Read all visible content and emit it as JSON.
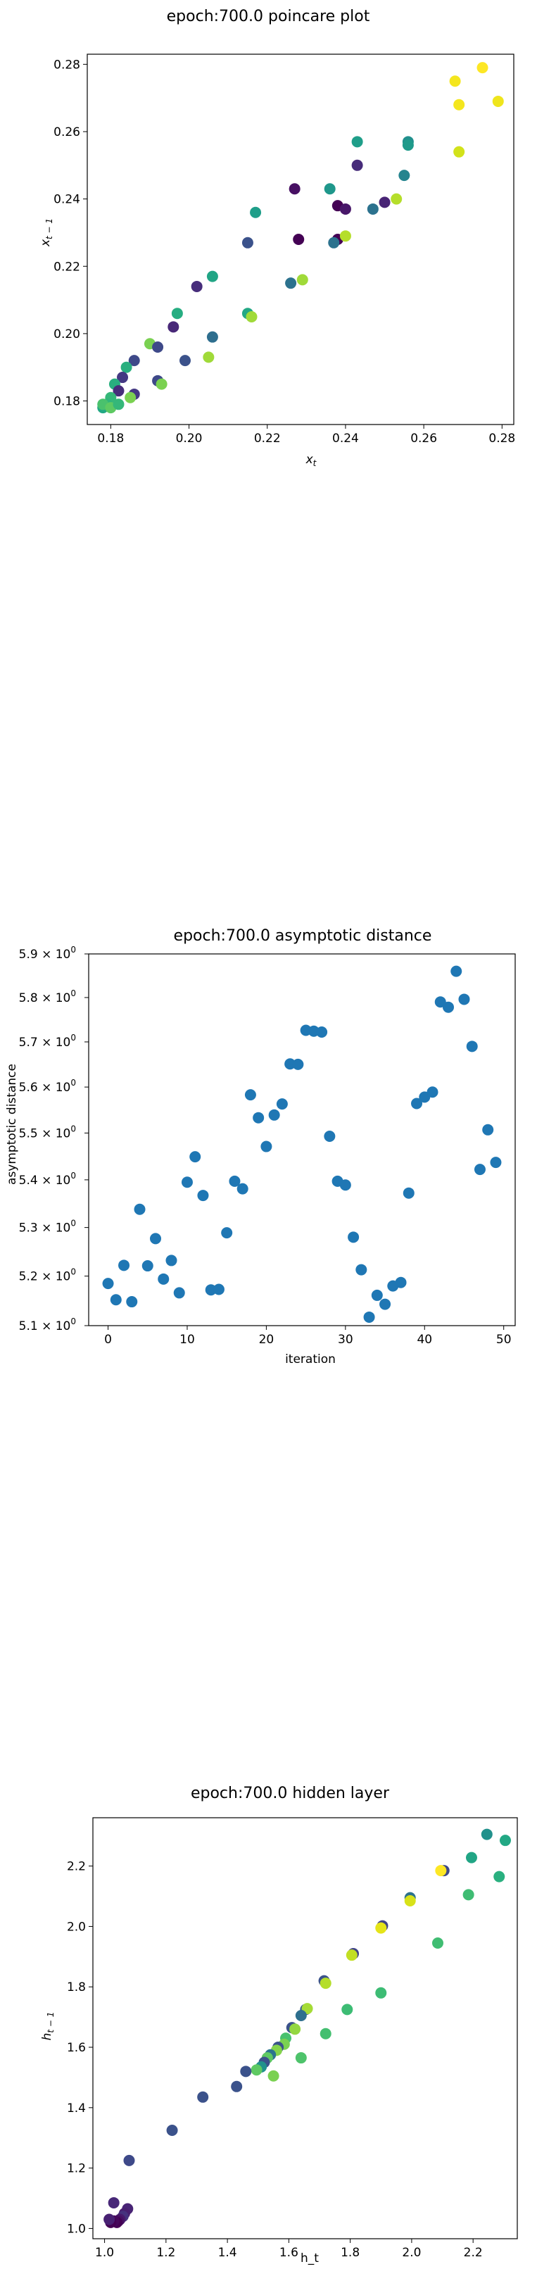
{
  "chart_data": [
    {
      "type": "scatter",
      "title": "epoch:700.0 poincare plot",
      "xlabel": "x_t",
      "ylabel": "x_{t−1}",
      "xlim": [
        0.174,
        0.283
      ],
      "ylim": [
        0.173,
        0.283
      ],
      "xticks": [
        "0.18",
        "0.20",
        "0.22",
        "0.24",
        "0.26",
        "0.28"
      ],
      "xtick_values": [
        0.18,
        0.2,
        0.22,
        0.24,
        0.26,
        0.28
      ],
      "yticks": [
        "0.18",
        "0.20",
        "0.22",
        "0.24",
        "0.26",
        "0.28"
      ],
      "ytick_values": [
        0.18,
        0.2,
        0.22,
        0.24,
        0.26,
        0.28
      ],
      "colormap": "viridis",
      "points": [
        {
          "x": 0.275,
          "y": 0.279,
          "c": "#fde725"
        },
        {
          "x": 0.279,
          "y": 0.269,
          "c": "#efe51c"
        },
        {
          "x": 0.268,
          "y": 0.275,
          "c": "#f4e61e"
        },
        {
          "x": 0.269,
          "y": 0.268,
          "c": "#f4e61e"
        },
        {
          "x": 0.269,
          "y": 0.254,
          "c": "#d2e21b"
        },
        {
          "x": 0.256,
          "y": 0.257,
          "c": "#21908d"
        },
        {
          "x": 0.256,
          "y": 0.256,
          "c": "#1f9a8a"
        },
        {
          "x": 0.243,
          "y": 0.257,
          "c": "#1f9e89"
        },
        {
          "x": 0.255,
          "y": 0.247,
          "c": "#25848e"
        },
        {
          "x": 0.253,
          "y": 0.24,
          "c": "#b5de2b"
        },
        {
          "x": 0.25,
          "y": 0.239,
          "c": "#482475"
        },
        {
          "x": 0.247,
          "y": 0.237,
          "c": "#2c728e"
        },
        {
          "x": 0.243,
          "y": 0.25,
          "c": "#472c7a"
        },
        {
          "x": 0.236,
          "y": 0.243,
          "c": "#1f978b"
        },
        {
          "x": 0.227,
          "y": 0.243,
          "c": "#471063"
        },
        {
          "x": 0.238,
          "y": 0.238,
          "c": "#440154"
        },
        {
          "x": 0.24,
          "y": 0.237,
          "c": "#481769"
        },
        {
          "x": 0.238,
          "y": 0.228,
          "c": "#440154"
        },
        {
          "x": 0.24,
          "y": 0.229,
          "c": "#b5de2b"
        },
        {
          "x": 0.237,
          "y": 0.227,
          "c": "#2c728e"
        },
        {
          "x": 0.228,
          "y": 0.228,
          "c": "#440154"
        },
        {
          "x": 0.217,
          "y": 0.236,
          "c": "#1f9e89"
        },
        {
          "x": 0.215,
          "y": 0.227,
          "c": "#3b528b"
        },
        {
          "x": 0.229,
          "y": 0.216,
          "c": "#a0da39"
        },
        {
          "x": 0.226,
          "y": 0.215,
          "c": "#2c728e"
        },
        {
          "x": 0.206,
          "y": 0.217,
          "c": "#21a585"
        },
        {
          "x": 0.202,
          "y": 0.214,
          "c": "#472d7b"
        },
        {
          "x": 0.215,
          "y": 0.206,
          "c": "#22a884"
        },
        {
          "x": 0.216,
          "y": 0.205,
          "c": "#a0da39"
        },
        {
          "x": 0.197,
          "y": 0.206,
          "c": "#26ad81"
        },
        {
          "x": 0.206,
          "y": 0.199,
          "c": "#2e6e8e"
        },
        {
          "x": 0.196,
          "y": 0.202,
          "c": "#482878"
        },
        {
          "x": 0.19,
          "y": 0.197,
          "c": "#7ad151"
        },
        {
          "x": 0.192,
          "y": 0.196,
          "c": "#3e4989"
        },
        {
          "x": 0.205,
          "y": 0.193,
          "c": "#a0da39"
        },
        {
          "x": 0.199,
          "y": 0.192,
          "c": "#3b528b"
        },
        {
          "x": 0.186,
          "y": 0.192,
          "c": "#3e4989"
        },
        {
          "x": 0.184,
          "y": 0.19,
          "c": "#29af7f"
        },
        {
          "x": 0.183,
          "y": 0.187,
          "c": "#443983"
        },
        {
          "x": 0.181,
          "y": 0.185,
          "c": "#29af7f"
        },
        {
          "x": 0.192,
          "y": 0.186,
          "c": "#3e4989"
        },
        {
          "x": 0.193,
          "y": 0.185,
          "c": "#7ad151"
        },
        {
          "x": 0.182,
          "y": 0.183,
          "c": "#472d7b"
        },
        {
          "x": 0.186,
          "y": 0.182,
          "c": "#443983"
        },
        {
          "x": 0.18,
          "y": 0.181,
          "c": "#35b779"
        },
        {
          "x": 0.185,
          "y": 0.181,
          "c": "#7ad151"
        },
        {
          "x": 0.179,
          "y": 0.179,
          "c": "#2fb47c"
        },
        {
          "x": 0.178,
          "y": 0.178,
          "c": "#22a884"
        },
        {
          "x": 0.178,
          "y": 0.179,
          "c": "#4ac16d"
        },
        {
          "x": 0.18,
          "y": 0.178,
          "c": "#5ec962"
        },
        {
          "x": 0.182,
          "y": 0.179,
          "c": "#35b779"
        }
      ]
    },
    {
      "type": "scatter",
      "title": "epoch:700.0 asymptotic distance",
      "xlabel": "iteration",
      "ylabel": "asymptotic distance",
      "yscale": "log",
      "xlim": [
        -2.45,
        51.45
      ],
      "ylim": [
        5.1,
        5.9
      ],
      "xticks": [
        "0",
        "10",
        "20",
        "30",
        "40",
        "50"
      ],
      "xtick_values": [
        0,
        10,
        20,
        30,
        40,
        50
      ],
      "yticks": [
        {
          "base": "5.9",
          "exp": "0",
          "value": 5.9
        },
        {
          "base": "5.8",
          "exp": "0",
          "value": 5.8
        },
        {
          "base": "5.7",
          "exp": "0",
          "value": 5.7
        },
        {
          "base": "5.6",
          "exp": "0",
          "value": 5.6
        },
        {
          "base": "5.5",
          "exp": "0",
          "value": 5.5
        },
        {
          "base": "5.4",
          "exp": "0",
          "value": 5.4
        },
        {
          "base": "5.3",
          "exp": "0",
          "value": 5.3
        },
        {
          "base": "5.2",
          "exp": "0",
          "value": 5.2
        },
        {
          "base": "5.1",
          "exp": "0",
          "value": 5.1
        }
      ],
      "color": "#1f77b4",
      "x": [
        0,
        1,
        2,
        3,
        4,
        5,
        6,
        7,
        8,
        9,
        10,
        11,
        12,
        13,
        14,
        15,
        16,
        17,
        18,
        19,
        20,
        21,
        22,
        23,
        24,
        25,
        26,
        27,
        28,
        29,
        30,
        31,
        32,
        33,
        34,
        35,
        36,
        37,
        38,
        39,
        40,
        41,
        42,
        43,
        44,
        45,
        46,
        47,
        48,
        49
      ],
      "y": [
        5.185,
        5.152,
        5.222,
        5.148,
        5.338,
        5.221,
        5.277,
        5.194,
        5.232,
        5.166,
        5.395,
        5.449,
        5.367,
        5.172,
        5.173,
        5.289,
        5.397,
        5.381,
        5.583,
        5.533,
        5.471,
        5.539,
        5.563,
        5.651,
        5.65,
        5.726,
        5.724,
        5.722,
        5.493,
        5.397,
        5.389,
        5.28,
        5.213,
        5.117,
        5.161,
        5.143,
        5.18,
        5.187,
        5.372,
        5.564,
        5.578,
        5.589,
        5.79,
        5.778,
        5.86,
        5.796,
        5.69,
        5.422,
        5.507,
        5.437
      ]
    },
    {
      "type": "scatter",
      "title": "epoch:700.0 hidden layer",
      "xlabel": "h_t",
      "ylabel": "h_{t−1}",
      "xlim": [
        0.962,
        2.344
      ],
      "ylim": [
        0.966,
        2.36
      ],
      "xticks": [
        "1.0",
        "1.2",
        "1.4",
        "1.6",
        "1.8",
        "2.0",
        "2.2"
      ],
      "xtick_values": [
        1.0,
        1.2,
        1.4,
        1.6,
        1.8,
        2.0,
        2.2
      ],
      "yticks": [
        "1.0",
        "1.2",
        "1.4",
        "1.6",
        "1.8",
        "2.0",
        "2.2"
      ],
      "ytick_values": [
        1.0,
        1.2,
        1.4,
        1.6,
        1.8,
        2.0,
        2.2
      ],
      "colormap": "viridis",
      "points": [
        {
          "x": 2.245,
          "y": 2.305,
          "c": "#21918c"
        },
        {
          "x": 2.305,
          "y": 2.285,
          "c": "#22a884"
        },
        {
          "x": 2.195,
          "y": 2.228,
          "c": "#21a585"
        },
        {
          "x": 2.285,
          "y": 2.165,
          "c": "#2ab07f"
        },
        {
          "x": 2.105,
          "y": 2.185,
          "c": "#3e4989"
        },
        {
          "x": 2.095,
          "y": 2.185,
          "c": "#fde725"
        },
        {
          "x": 2.185,
          "y": 2.105,
          "c": "#3fbc73"
        },
        {
          "x": 1.995,
          "y": 2.095,
          "c": "#2c728e"
        },
        {
          "x": 1.995,
          "y": 2.085,
          "c": "#d8e219"
        },
        {
          "x": 1.905,
          "y": 2.002,
          "c": "#414487"
        },
        {
          "x": 1.9,
          "y": 1.995,
          "c": "#e5e419"
        },
        {
          "x": 2.085,
          "y": 1.945,
          "c": "#40bd72"
        },
        {
          "x": 1.81,
          "y": 1.91,
          "c": "#414487"
        },
        {
          "x": 1.805,
          "y": 1.905,
          "c": "#c2df23"
        },
        {
          "x": 1.715,
          "y": 1.82,
          "c": "#3b528b"
        },
        {
          "x": 1.72,
          "y": 1.812,
          "c": "#b5de2b"
        },
        {
          "x": 1.9,
          "y": 1.78,
          "c": "#3dbc74"
        },
        {
          "x": 1.655,
          "y": 1.725,
          "c": "#38598c"
        },
        {
          "x": 1.66,
          "y": 1.728,
          "c": "#a5db36"
        },
        {
          "x": 1.79,
          "y": 1.725,
          "c": "#3dbc74"
        },
        {
          "x": 1.64,
          "y": 1.705,
          "c": "#2e6f8e"
        },
        {
          "x": 1.61,
          "y": 1.665,
          "c": "#3b528b"
        },
        {
          "x": 1.62,
          "y": 1.66,
          "c": "#93d741"
        },
        {
          "x": 1.72,
          "y": 1.645,
          "c": "#44bf70"
        },
        {
          "x": 1.59,
          "y": 1.63,
          "c": "#48c16e"
        },
        {
          "x": 1.585,
          "y": 1.61,
          "c": "#7ad151"
        },
        {
          "x": 1.565,
          "y": 1.6,
          "c": "#3a538b"
        },
        {
          "x": 1.56,
          "y": 1.59,
          "c": "#84d44b"
        },
        {
          "x": 1.54,
          "y": 1.575,
          "c": "#2b748e"
        },
        {
          "x": 1.53,
          "y": 1.565,
          "c": "#5ec962"
        },
        {
          "x": 1.64,
          "y": 1.565,
          "c": "#4ec36b"
        },
        {
          "x": 1.52,
          "y": 1.55,
          "c": "#3b528b"
        },
        {
          "x": 1.51,
          "y": 1.535,
          "c": "#21918c"
        },
        {
          "x": 1.495,
          "y": 1.525,
          "c": "#5ec962"
        },
        {
          "x": 1.46,
          "y": 1.52,
          "c": "#3b528b"
        },
        {
          "x": 1.55,
          "y": 1.505,
          "c": "#7ad151"
        },
        {
          "x": 1.43,
          "y": 1.47,
          "c": "#3b528b"
        },
        {
          "x": 1.32,
          "y": 1.435,
          "c": "#3b528b"
        },
        {
          "x": 1.22,
          "y": 1.325,
          "c": "#3b528b"
        },
        {
          "x": 1.08,
          "y": 1.225,
          "c": "#3e4989"
        },
        {
          "x": 1.03,
          "y": 1.085,
          "c": "#482878"
        },
        {
          "x": 1.075,
          "y": 1.065,
          "c": "#482475"
        },
        {
          "x": 1.065,
          "y": 1.05,
          "c": "#481f70"
        },
        {
          "x": 1.06,
          "y": 1.04,
          "c": "#46327e"
        },
        {
          "x": 1.05,
          "y": 1.03,
          "c": "#481a6c"
        },
        {
          "x": 1.045,
          "y": 1.025,
          "c": "#471063"
        },
        {
          "x": 1.04,
          "y": 1.02,
          "c": "#440154"
        },
        {
          "x": 1.03,
          "y": 1.025,
          "c": "#46085c"
        },
        {
          "x": 1.02,
          "y": 1.02,
          "c": "#440154"
        },
        {
          "x": 1.015,
          "y": 1.03,
          "c": "#482173"
        }
      ]
    }
  ]
}
